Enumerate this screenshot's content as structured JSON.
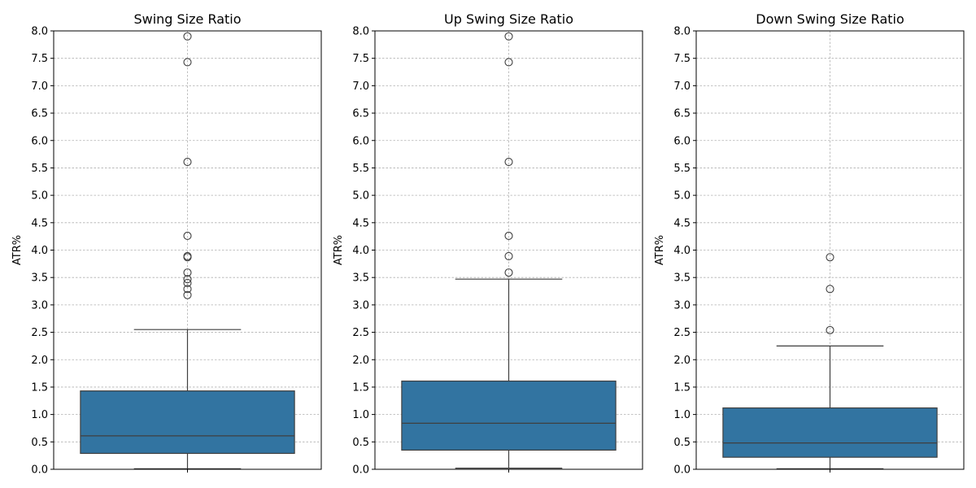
{
  "chart_data": [
    {
      "type": "box",
      "title": "Swing Size Ratio",
      "ylabel": "ATR%",
      "ylim": [
        0,
        8
      ],
      "yticks": [
        "0.0",
        "0.5",
        "1.0",
        "1.5",
        "2.0",
        "2.5",
        "3.0",
        "3.5",
        "4.0",
        "4.5",
        "5.0",
        "5.5",
        "6.0",
        "6.5",
        "7.0",
        "7.5",
        "8.0"
      ],
      "grid": true,
      "color": "#3274a1",
      "box": {
        "whisker_low": 0.01,
        "q1": 0.29,
        "median": 0.61,
        "q3": 1.43,
        "whisker_high": 2.55
      },
      "outliers": [
        7.9,
        7.43,
        5.61,
        4.26,
        3.89,
        3.87,
        3.59,
        3.47,
        3.4,
        3.29,
        3.18
      ]
    },
    {
      "type": "box",
      "title": "Up Swing Size Ratio",
      "ylabel": "ATR%",
      "ylim": [
        0,
        8
      ],
      "yticks": [
        "0.0",
        "0.5",
        "1.0",
        "1.5",
        "2.0",
        "2.5",
        "3.0",
        "3.5",
        "4.0",
        "4.5",
        "5.0",
        "5.5",
        "6.0",
        "6.5",
        "7.0",
        "7.5",
        "8.0"
      ],
      "grid": true,
      "color": "#3274a1",
      "box": {
        "whisker_low": 0.02,
        "q1": 0.35,
        "median": 0.84,
        "q3": 1.61,
        "whisker_high": 3.47
      },
      "outliers": [
        7.9,
        7.43,
        5.61,
        4.26,
        3.89,
        3.59
      ]
    },
    {
      "type": "box",
      "title": "Down Swing Size Ratio",
      "ylabel": "ATR%",
      "ylim": [
        0,
        8
      ],
      "yticks": [
        "0.0",
        "0.5",
        "1.0",
        "1.5",
        "2.0",
        "2.5",
        "3.0",
        "3.5",
        "4.0",
        "4.5",
        "5.0",
        "5.5",
        "6.0",
        "6.5",
        "7.0",
        "7.5",
        "8.0"
      ],
      "grid": true,
      "color": "#3274a1",
      "box": {
        "whisker_low": 0.01,
        "q1": 0.22,
        "median": 0.48,
        "q3": 1.12,
        "whisker_high": 2.25
      },
      "outliers": [
        3.87,
        3.29,
        2.54
      ]
    }
  ]
}
